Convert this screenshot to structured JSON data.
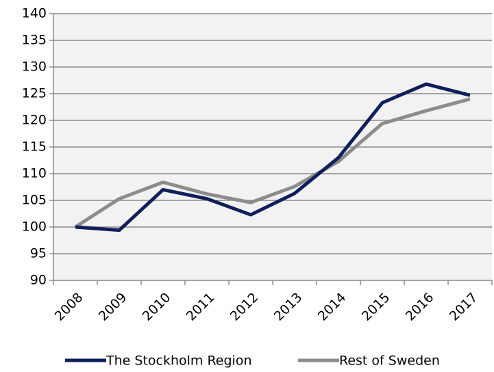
{
  "chart_data": {
    "type": "line",
    "categories": [
      "2008",
      "2009",
      "2010",
      "2011",
      "2012",
      "2013",
      "2014",
      "2015",
      "2016",
      "2017"
    ],
    "series": [
      {
        "name": "The Stockholm Region",
        "color": "#0f1f5c",
        "values": [
          100,
          99.4,
          107,
          105.3,
          102.3,
          106.3,
          113,
          123.3,
          126.8,
          124.7
        ]
      },
      {
        "name": "Rest of Sweden",
        "color": "#8c8c8c",
        "values": [
          100,
          105.3,
          108.4,
          106.2,
          104.6,
          107.6,
          112.3,
          119.4,
          121.8,
          124
        ]
      }
    ],
    "ylim": [
      90,
      140
    ],
    "yticks": [
      90,
      95,
      100,
      105,
      110,
      115,
      120,
      125,
      130,
      135,
      140
    ],
    "grid": true,
    "legend": "bottom"
  }
}
